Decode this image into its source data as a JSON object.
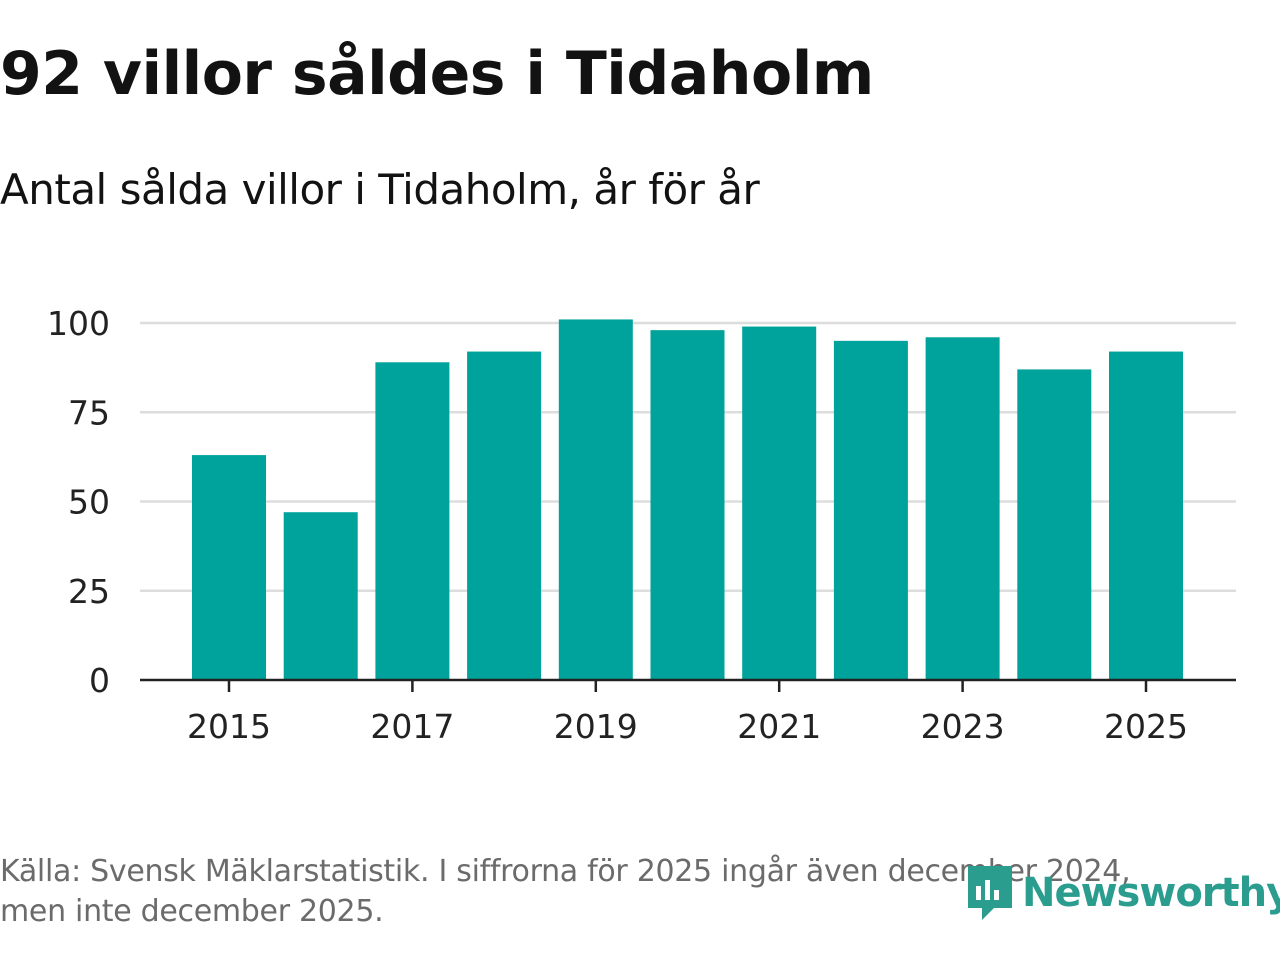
{
  "title": "92 villor såldes i Tidaholm",
  "subtitle": "Antal sålda villor i Tidaholm, år för år",
  "source": "Källa: Svensk Mäklarstatistik. I siffrorna för 2025 ingår även december 2024, men inte december 2025.",
  "logo": {
    "text": "Newsworthy",
    "icon": "newsworthy-logo-icon"
  },
  "colors": {
    "bar": "#00a39b",
    "grid": "#dddddd",
    "axis": "#222222",
    "logo": "#2a9d8f"
  },
  "chart_data": {
    "type": "bar",
    "title": "Antal sålda villor i Tidaholm, år för år",
    "xlabel": "",
    "ylabel": "",
    "categories": [
      "2015",
      "2016",
      "2017",
      "2018",
      "2019",
      "2020",
      "2021",
      "2022",
      "2023",
      "2024",
      "2025"
    ],
    "values": [
      63,
      47,
      89,
      92,
      101,
      98,
      99,
      95,
      96,
      87,
      92
    ],
    "x_tick_labels": [
      "2015",
      "2017",
      "2019",
      "2021",
      "2023",
      "2025"
    ],
    "y_ticks": [
      0,
      25,
      50,
      75,
      100
    ],
    "y_tick_labels": [
      "0",
      "25",
      "50",
      "75",
      "100"
    ],
    "ylim": [
      0,
      100
    ],
    "grid": true,
    "legend": "none"
  }
}
